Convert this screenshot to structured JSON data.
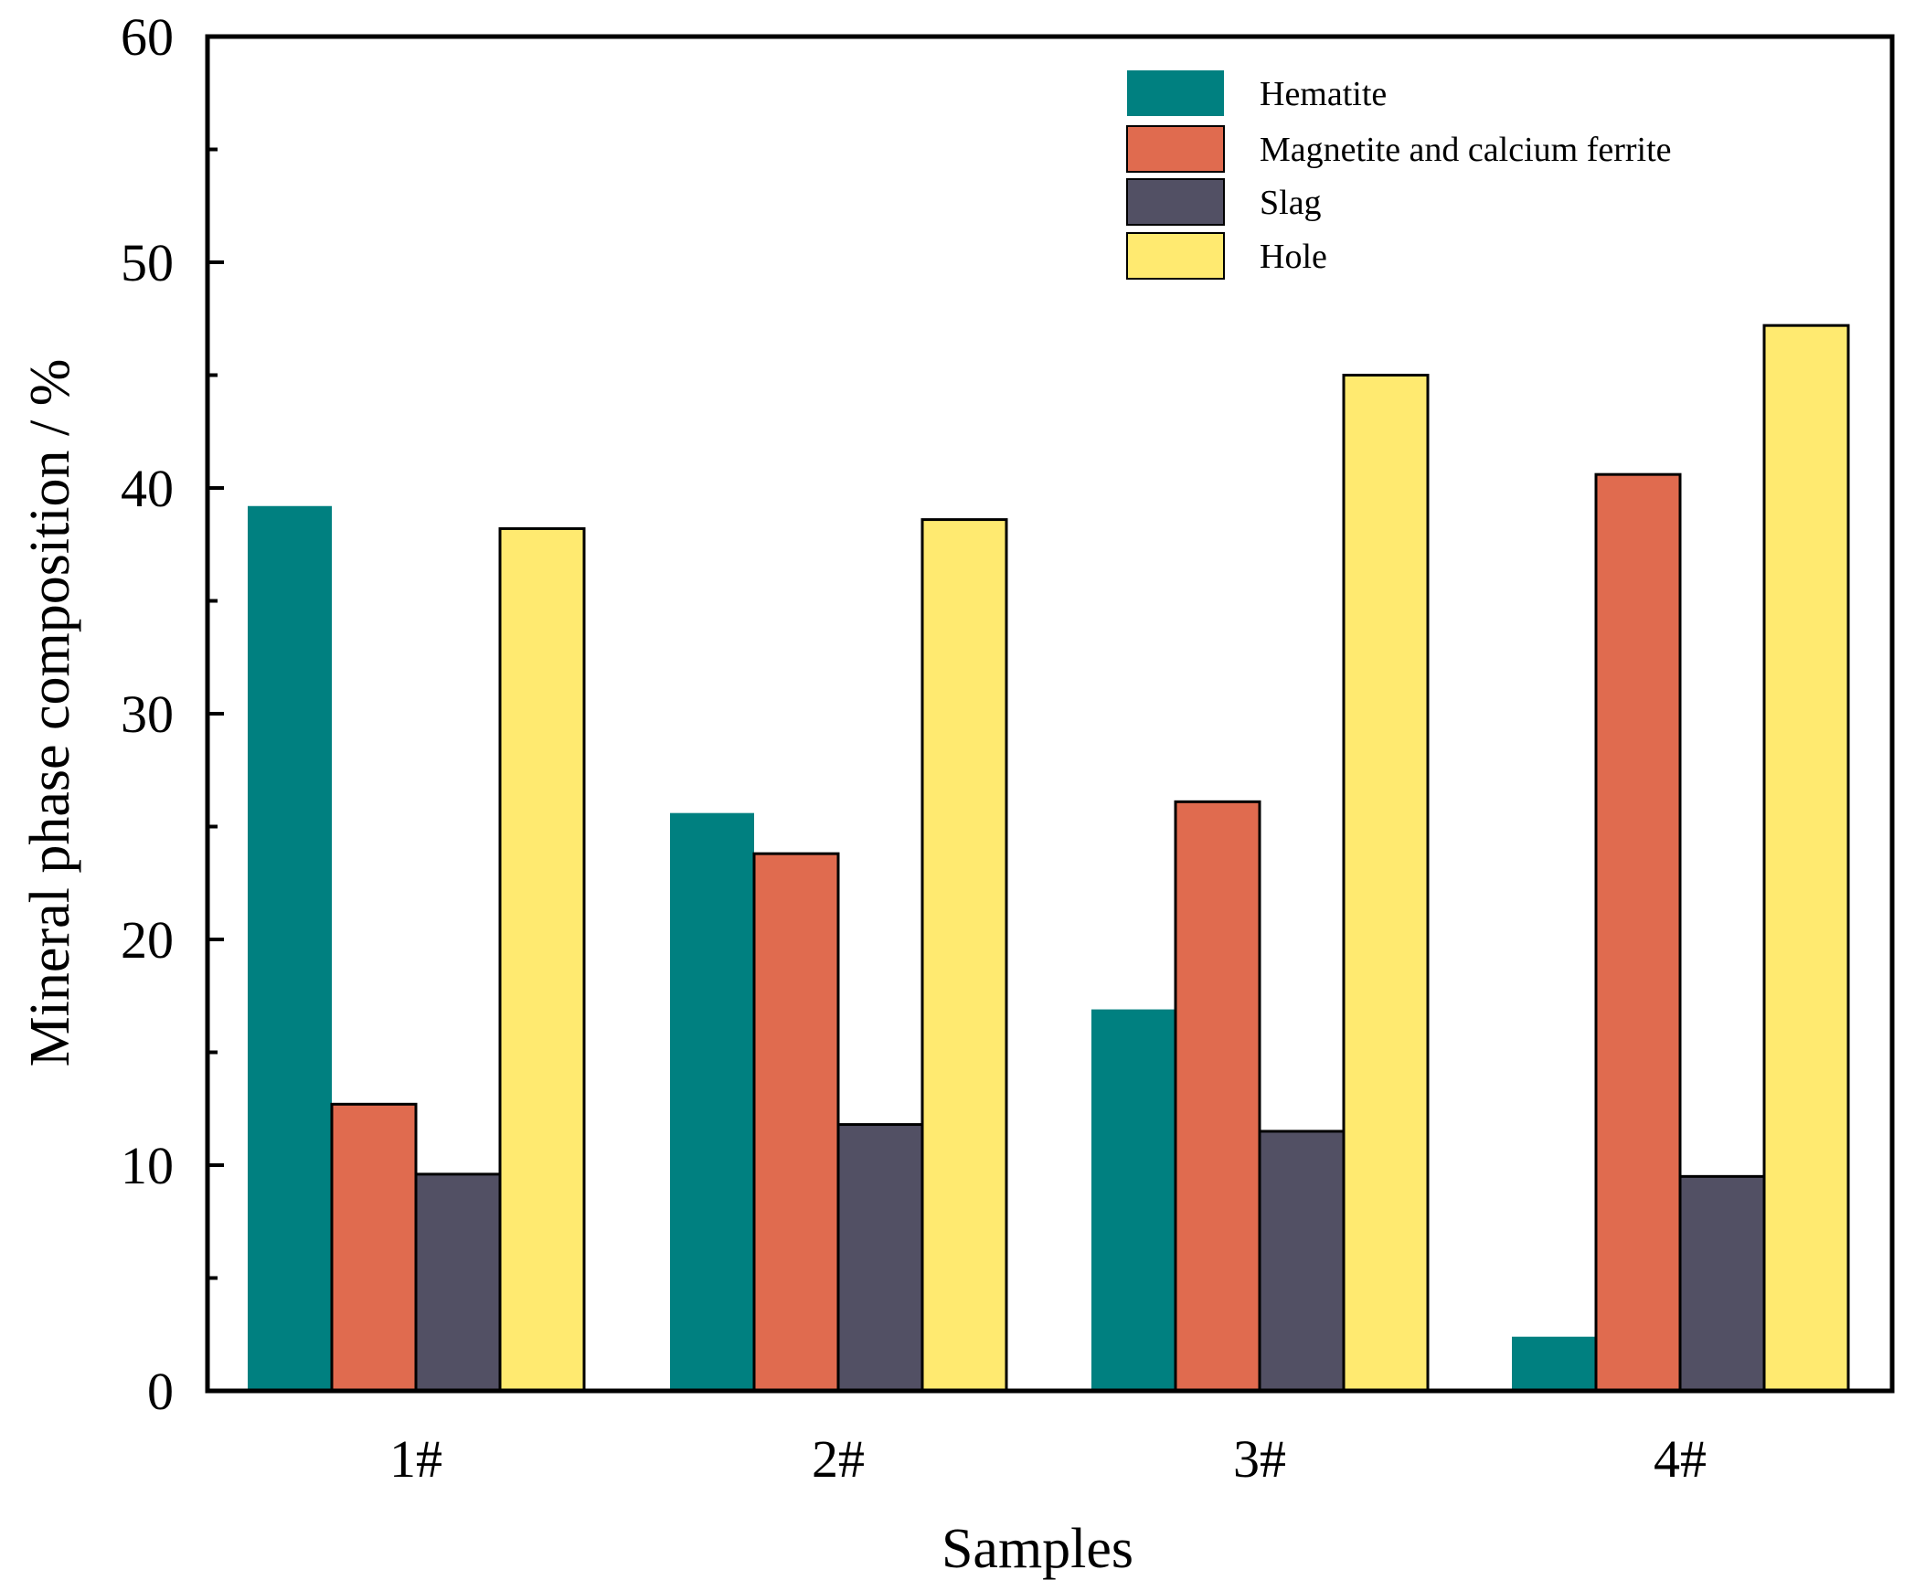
{
  "chart_data": {
    "type": "bar",
    "title": "",
    "xlabel": "Samples",
    "ylabel": "Mineral phase composition / %",
    "categories": [
      "1#",
      "2#",
      "3#",
      "4#"
    ],
    "ylim": [
      0,
      60
    ],
    "yticks": [
      0,
      10,
      20,
      30,
      40,
      50,
      60
    ],
    "grid": false,
    "legend_position": "top-right",
    "series": [
      {
        "name": "Hematite",
        "color": "#008080",
        "values": [
          39.2,
          25.6,
          16.9,
          2.4
        ]
      },
      {
        "name": "Magnetite and calcium ferrite",
        "color": "#E06B4F",
        "values": [
          12.7,
          23.8,
          26.1,
          40.6
        ]
      },
      {
        "name": "Slag",
        "color": "#525064",
        "values": [
          9.6,
          11.8,
          11.5,
          9.5
        ]
      },
      {
        "name": "Hole",
        "color": "#FFEA70",
        "values": [
          38.2,
          38.6,
          45.0,
          47.2
        ]
      }
    ]
  }
}
